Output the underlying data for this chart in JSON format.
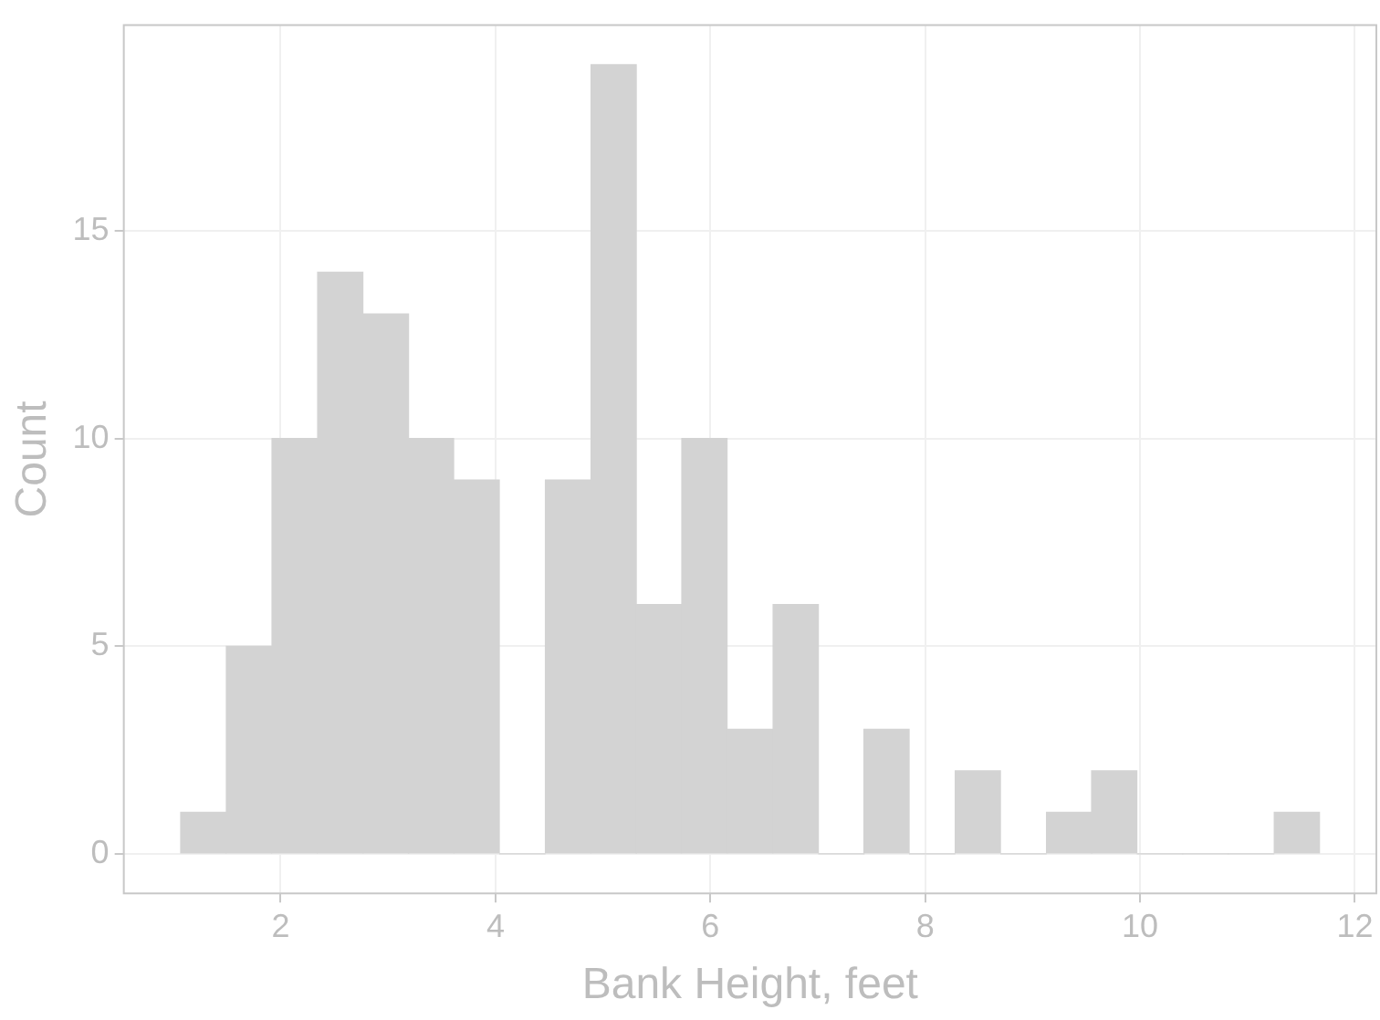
{
  "chart_data": {
    "type": "histogram",
    "xlabel": "Bank Height, feet",
    "ylabel": "Count",
    "bins": [
      1.07,
      1.49,
      1.92,
      2.34,
      2.77,
      3.19,
      3.61,
      4.04,
      4.46,
      4.89,
      5.31,
      5.73,
      6.16,
      6.58,
      7.01,
      7.43,
      7.85,
      8.28,
      8.7,
      9.13,
      9.55,
      9.97,
      10.4,
      10.82,
      11.25,
      11.67
    ],
    "values": [
      1,
      5,
      10,
      14,
      13,
      10,
      9,
      0,
      9,
      19,
      6,
      10,
      3,
      6,
      0,
      3,
      0,
      2,
      0,
      1,
      2,
      0,
      0,
      0,
      1
    ],
    "color": "#d3d3d3",
    "xlim": [
      0.54,
      12.2
    ],
    "xticks": [
      2,
      4,
      6,
      8,
      10,
      12
    ],
    "ylim": [
      -0.95,
      19.95
    ],
    "yticks": [
      0,
      5,
      10,
      15
    ],
    "grid": true
  }
}
